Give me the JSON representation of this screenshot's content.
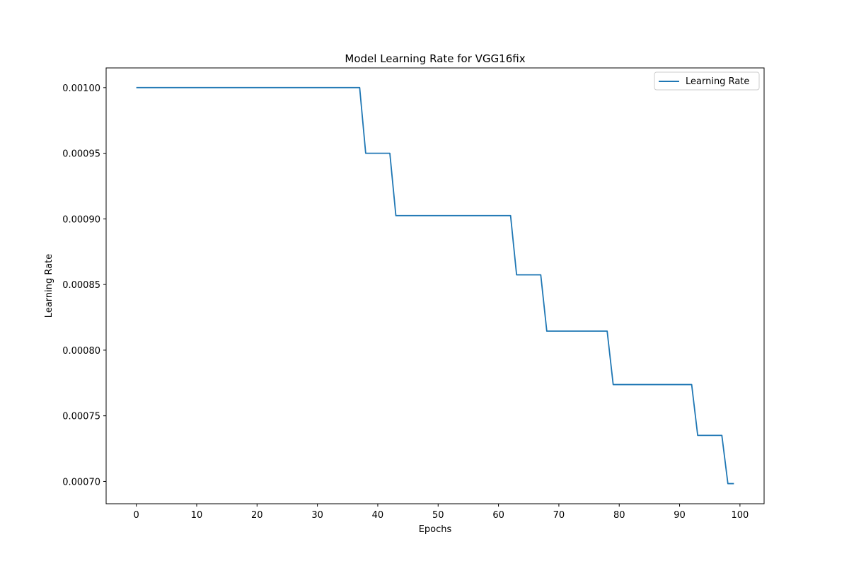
{
  "chart_data": {
    "type": "line",
    "title": "Model Learning Rate for VGG16fix",
    "xlabel": "Epochs",
    "ylabel": "Learning Rate",
    "xlim": [
      -5,
      104
    ],
    "ylim": [
      0.000683,
      0.001015
    ],
    "xticks": [
      0,
      10,
      20,
      30,
      40,
      50,
      60,
      70,
      80,
      90,
      100
    ],
    "yticks": [
      0.0007,
      0.00075,
      0.0008,
      0.00085,
      0.0009,
      0.00095,
      0.001
    ],
    "xtick_labels": [
      "0",
      "10",
      "20",
      "30",
      "40",
      "50",
      "60",
      "70",
      "80",
      "90",
      "100"
    ],
    "ytick_labels": [
      "0.00070",
      "0.00075",
      "0.00080",
      "0.00085",
      "0.00090",
      "0.00095",
      "0.00100"
    ],
    "grid": false,
    "legend_position": "top-right",
    "series": [
      {
        "name": "Learning Rate",
        "color": "#1f77b4",
        "x": [
          0,
          37,
          38,
          42,
          43,
          62,
          63,
          67,
          68,
          78,
          79,
          92,
          93,
          97,
          98,
          99
        ],
        "y": [
          0.001,
          0.001,
          0.00095,
          0.00095,
          0.0009025,
          0.0009025,
          0.000857375,
          0.000857375,
          0.00081450625,
          0.00081450625,
          0.0007737809375,
          0.0007737809375,
          0.000735091890625,
          0.000735091890625,
          0.00069833729609375,
          0.00069833729609375
        ]
      }
    ]
  }
}
